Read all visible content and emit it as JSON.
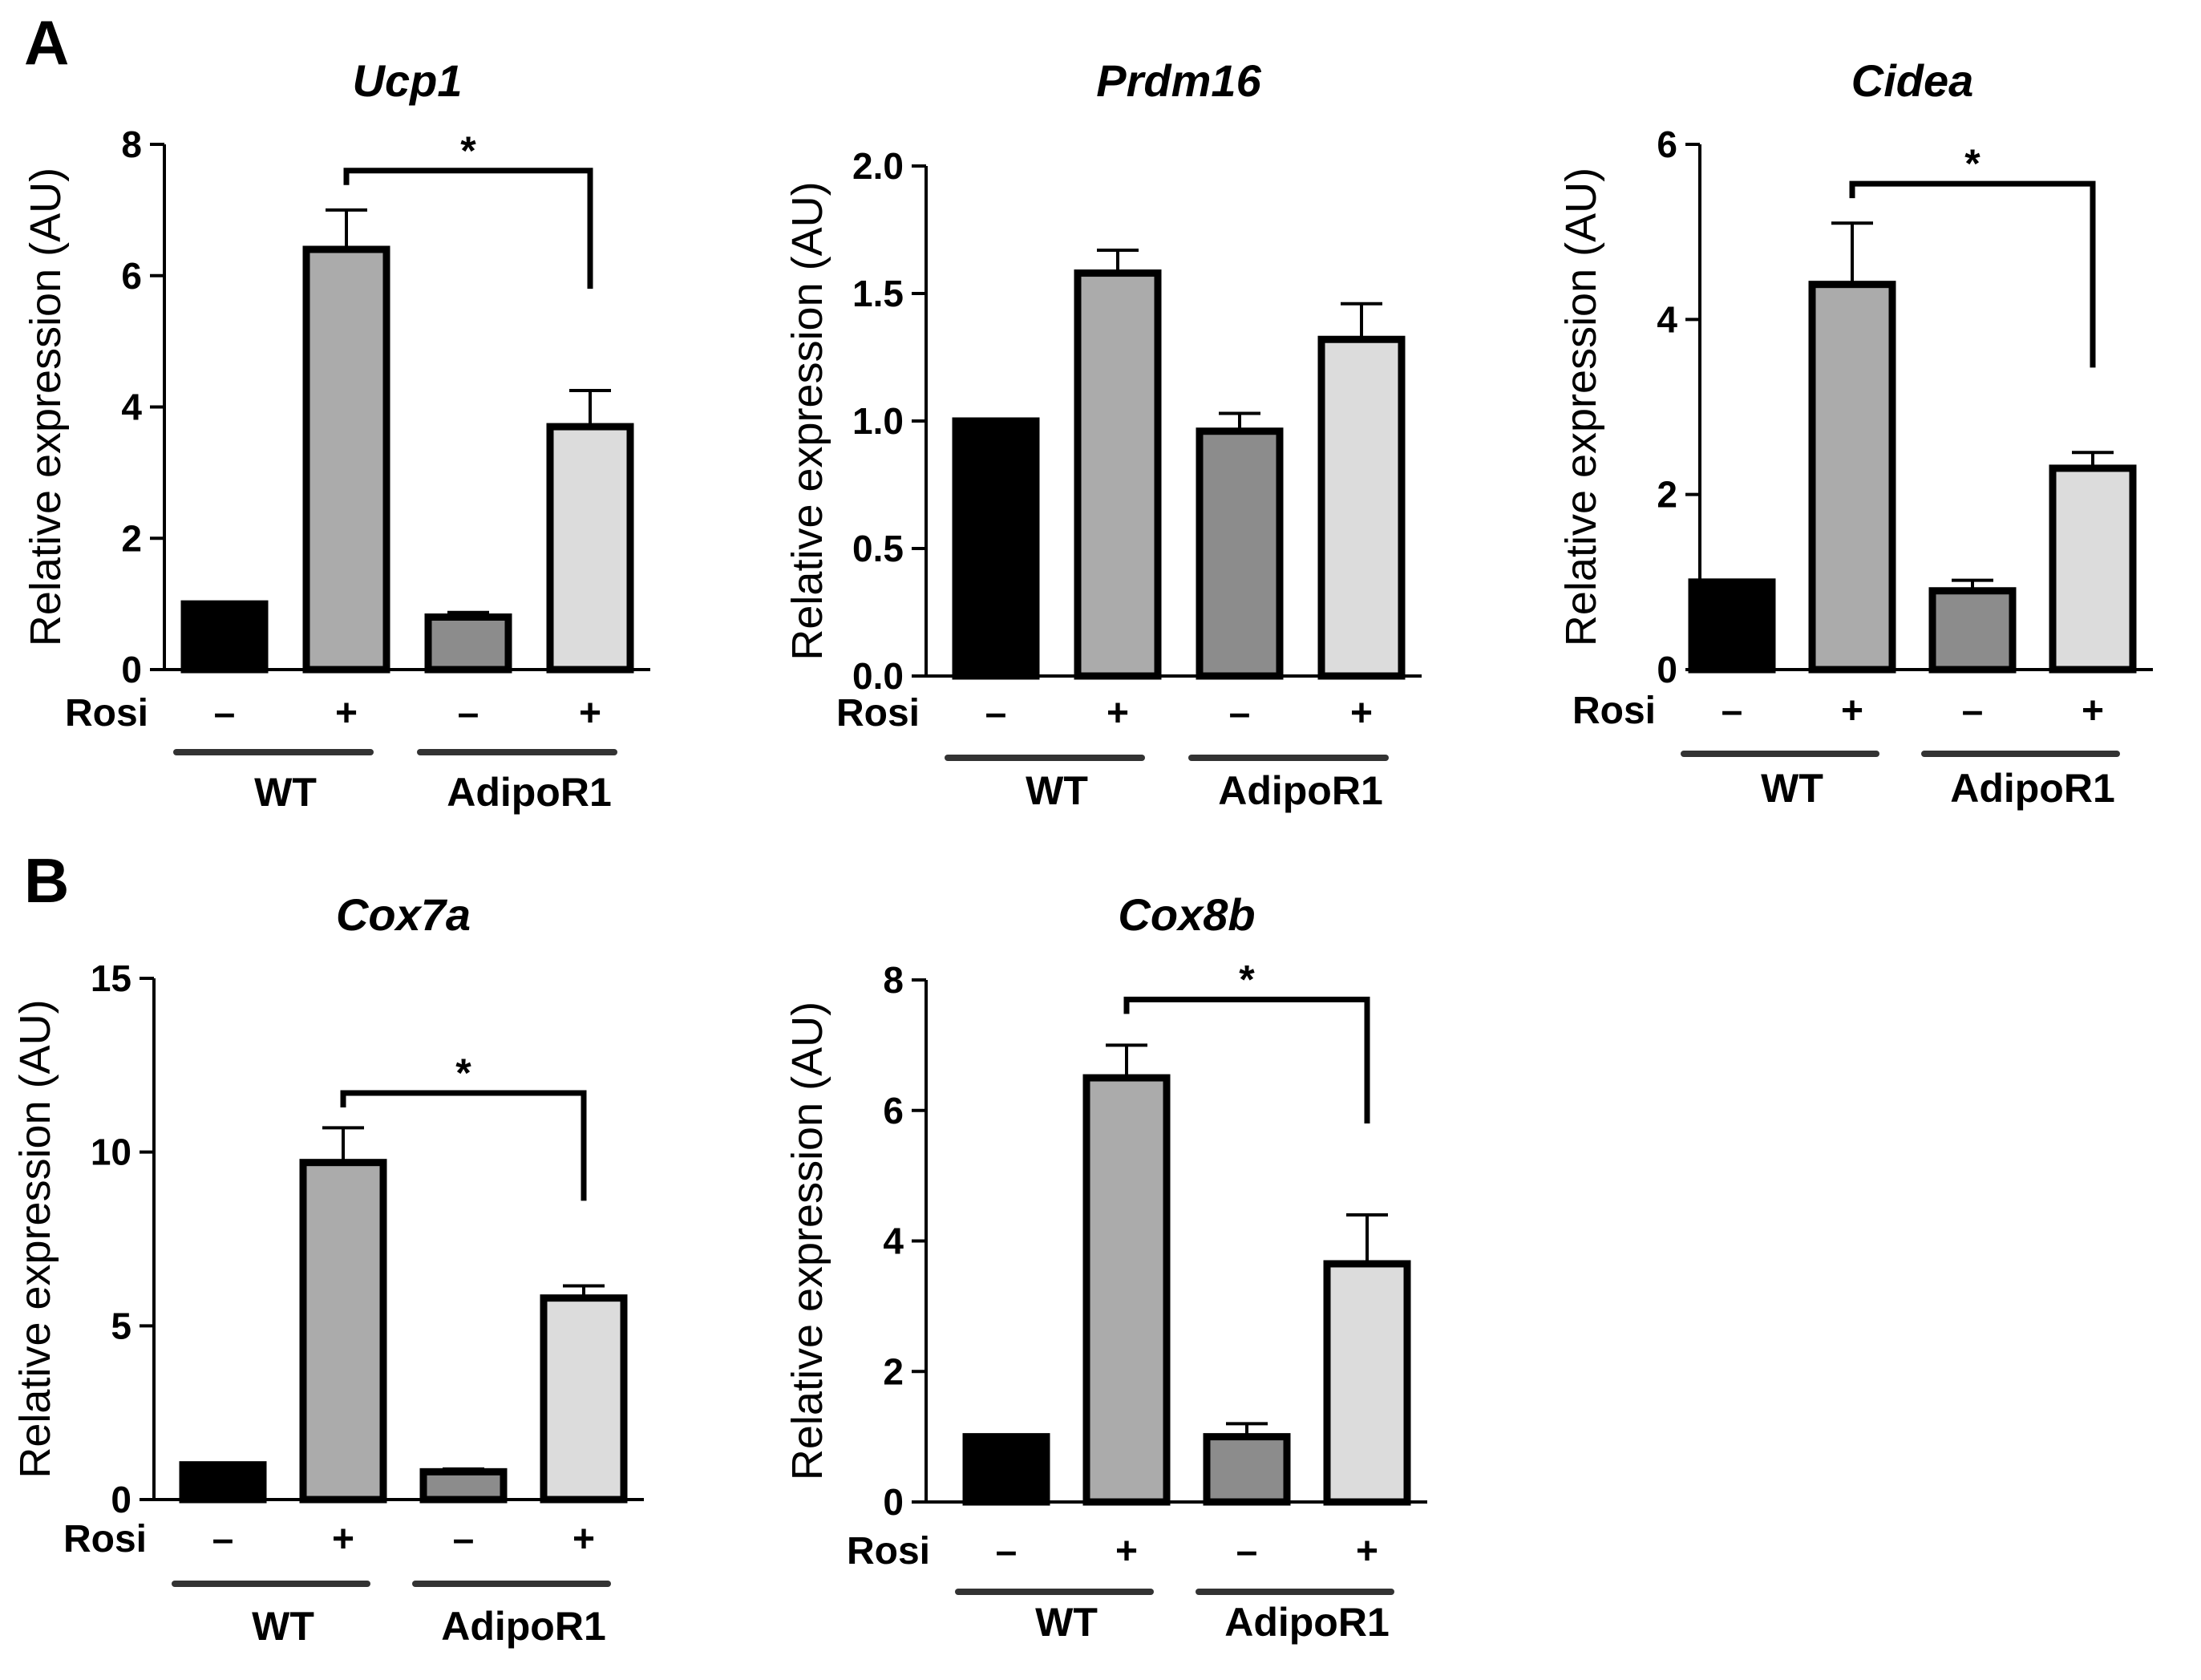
{
  "panels": [
    {
      "letter": "A"
    },
    {
      "letter": "B"
    }
  ],
  "shared": {
    "ylabel": "Relative expression (AU)",
    "row_label": "Rosi",
    "conditions": [
      "–",
      "+",
      "–",
      "+"
    ],
    "groups": [
      "WT",
      "AdipoR1"
    ],
    "significance": "*"
  },
  "colors": {
    "bars": [
      "#000000",
      "#ababab",
      "#8c8c8c",
      "#dcdcdc"
    ],
    "stroke": "#000000",
    "group_underline": "#333333"
  },
  "chart_data": [
    {
      "type": "bar",
      "panel": "A",
      "title": "Ucp1",
      "ylabel": "Relative expression (AU)",
      "categories": [
        "WT –",
        "WT +",
        "AdipoR1 –",
        "AdipoR1 +"
      ],
      "values": [
        1.0,
        6.4,
        0.8,
        3.7
      ],
      "errors": [
        0,
        0.6,
        0.07,
        0.55
      ],
      "ylim": [
        0,
        8
      ],
      "yticks": [
        0,
        2,
        4,
        6,
        8
      ],
      "ytick_labels": [
        "0",
        "2",
        "4",
        "6",
        "8"
      ],
      "significance": {
        "from": 1,
        "to": 3,
        "label": "*",
        "level": 7.6,
        "drop_to": 5.8
      }
    },
    {
      "type": "bar",
      "panel": "A",
      "title": "Prdm16",
      "ylabel": "Relative expression (AU)",
      "categories": [
        "WT –",
        "WT +",
        "AdipoR1 –",
        "AdipoR1 +"
      ],
      "values": [
        1.0,
        1.58,
        0.96,
        1.32
      ],
      "errors": [
        0,
        0.09,
        0.07,
        0.14
      ],
      "ylim": [
        0,
        2.0
      ],
      "yticks": [
        0,
        0.5,
        1.0,
        1.5,
        2.0
      ],
      "ytick_labels": [
        "0.0",
        "0.5",
        "1.0",
        "1.5",
        "2.0"
      ],
      "significance": null
    },
    {
      "type": "bar",
      "panel": "A",
      "title": "Cidea",
      "ylabel": "Relative expression (AU)",
      "categories": [
        "WT –",
        "WT +",
        "AdipoR1 –",
        "AdipoR1 +"
      ],
      "values": [
        1.0,
        4.4,
        0.9,
        2.3
      ],
      "errors": [
        0,
        0.7,
        0.12,
        0.18
      ],
      "ylim": [
        0,
        6
      ],
      "yticks": [
        0,
        2,
        4,
        6
      ],
      "ytick_labels": [
        "0",
        "2",
        "4",
        "6"
      ],
      "significance": {
        "from": 1,
        "to": 3,
        "label": "*",
        "level": 5.55,
        "drop_to": 3.45
      }
    },
    {
      "type": "bar",
      "panel": "B",
      "title": "Cox7a",
      "ylabel": "Relative expression (AU)",
      "categories": [
        "WT –",
        "WT +",
        "AdipoR1 –",
        "AdipoR1 +"
      ],
      "values": [
        1.0,
        9.7,
        0.8,
        5.8
      ],
      "errors": [
        0,
        1.0,
        0.08,
        0.35
      ],
      "ylim": [
        0,
        15
      ],
      "yticks": [
        0,
        5,
        10,
        15
      ],
      "ytick_labels": [
        "0",
        "5",
        "10",
        "15"
      ],
      "significance": {
        "from": 1,
        "to": 3,
        "label": "*",
        "level": 11.7,
        "drop_to": 8.6
      }
    },
    {
      "type": "bar",
      "panel": "B",
      "title": "Cox8b",
      "ylabel": "Relative expression (AU)",
      "categories": [
        "WT –",
        "WT +",
        "AdipoR1 –",
        "AdipoR1 +"
      ],
      "values": [
        1.0,
        6.5,
        1.0,
        3.65
      ],
      "errors": [
        0,
        0.5,
        0.2,
        0.75
      ],
      "ylim": [
        0,
        8
      ],
      "yticks": [
        0,
        2,
        4,
        6,
        8
      ],
      "ytick_labels": [
        "0",
        "2",
        "4",
        "6",
        "8"
      ],
      "significance": {
        "from": 1,
        "to": 3,
        "label": "*",
        "level": 7.7,
        "drop_to": 5.8
      }
    }
  ]
}
